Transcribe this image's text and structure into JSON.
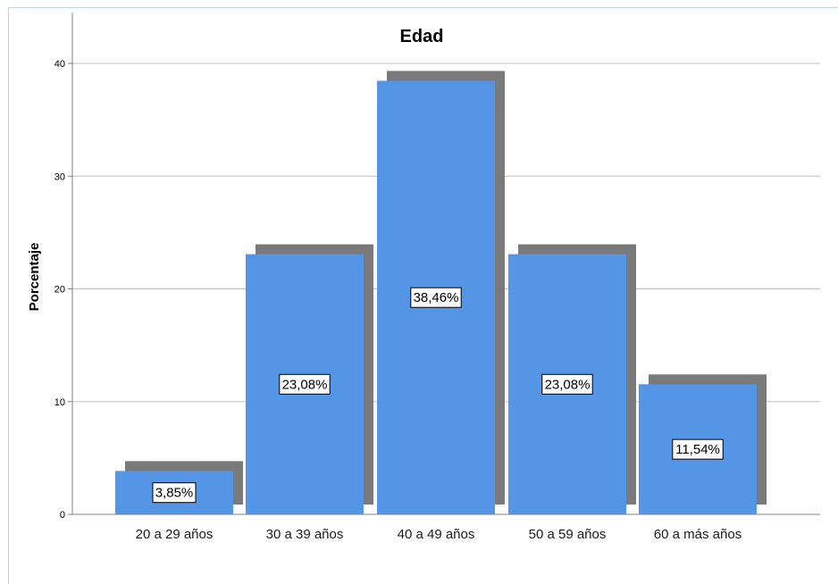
{
  "chart_data": {
    "type": "bar",
    "title": "Edad",
    "xlabel": "",
    "ylabel": "Porcentaje",
    "categories": [
      "20 a 29 años",
      "30 a 39 años",
      "40 a 49 años",
      "50 a 59 años",
      "60 a más años"
    ],
    "values": [
      3.85,
      23.08,
      38.46,
      23.08,
      11.54
    ],
    "data_labels": [
      "3,85%",
      "23,08%",
      "38,46%",
      "23,08%",
      "11,54%"
    ],
    "ylim": [
      0,
      40
    ],
    "yticks": [
      0,
      10,
      20,
      30,
      40
    ],
    "grid": true,
    "legend": "none",
    "colors": {
      "bar": "#5595e5",
      "shadow": "#7a7a7a",
      "grid": "#c0c0c0",
      "axis": "#808080"
    }
  }
}
